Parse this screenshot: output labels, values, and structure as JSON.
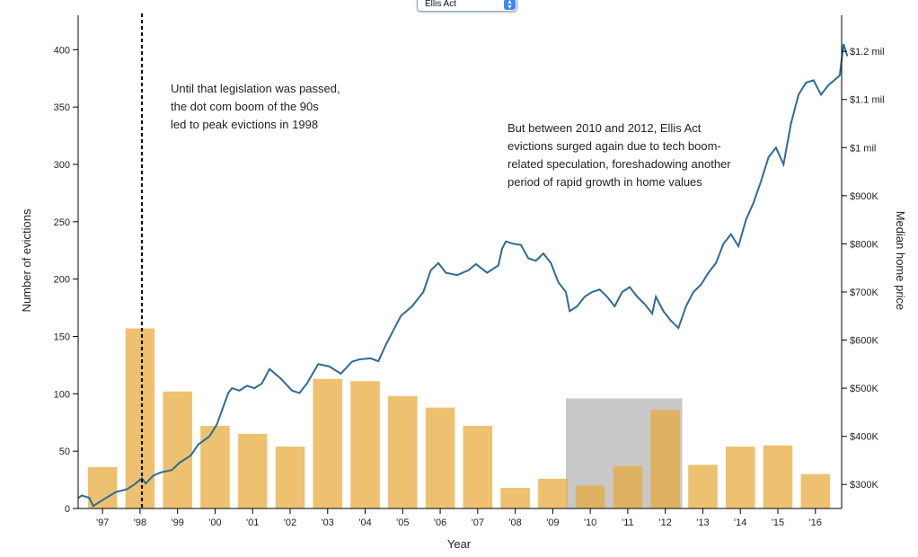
{
  "dropdown": {
    "selected": "Ellis Act"
  },
  "annotations": {
    "left": [
      "Until that legislation was passed,",
      "the dot com boom of the 90s",
      "led to peak evictions in 1998"
    ],
    "right": [
      "But between 2010 and 2012, Ellis Act",
      "evictions surged again due to tech boom-",
      "related speculation, foreshadowing another",
      "period of rapid growth in home values"
    ]
  },
  "colors": {
    "bar": "#e8a93a",
    "line": "#2c6b9a",
    "highlight": "#c8c8c8",
    "marker": "#111111"
  },
  "chart_data": {
    "type": "bar",
    "title": "",
    "xlabel": "Year",
    "ylabel_left": "Number of evictions",
    "ylabel_right": "Median home price",
    "ylim_left": [
      0,
      430
    ],
    "ylim_right": [
      250000,
      1275000
    ],
    "x_tick_labels": [
      "'97",
      "'98",
      "'99",
      "'00",
      "'01",
      "'02",
      "'03",
      "'04",
      "'05",
      "'06",
      "'07",
      "'08",
      "'09",
      "'10",
      "'11",
      "'12",
      "'13",
      "'14",
      "'15",
      "'16"
    ],
    "left_ticks": [
      0,
      50,
      100,
      150,
      200,
      250,
      300,
      350,
      400
    ],
    "right_ticks": [
      {
        "value": 300000,
        "label": "$300K"
      },
      {
        "value": 400000,
        "label": "$400K"
      },
      {
        "value": 500000,
        "label": "$500K"
      },
      {
        "value": 600000,
        "label": "$600K"
      },
      {
        "value": 700000,
        "label": "$700K"
      },
      {
        "value": 800000,
        "label": "$800K"
      },
      {
        "value": 900000,
        "label": "$900K"
      },
      {
        "value": 1000000,
        "label": "$1 mil"
      },
      {
        "value": 1100000,
        "label": "$1.1 mil"
      },
      {
        "value": 1200000,
        "label": "$1.2 mil"
      }
    ],
    "bars": {
      "name": "Ellis Act evictions",
      "categories": [
        "1997",
        "1998",
        "1999",
        "2000",
        "2001",
        "2002",
        "2003",
        "2004",
        "2005",
        "2006",
        "2007",
        "2008",
        "2009",
        "2010",
        "2011",
        "2012",
        "2013",
        "2014",
        "2015",
        "2016"
      ],
      "values": [
        36,
        157,
        102,
        72,
        65,
        54,
        113,
        111,
        98,
        88,
        72,
        18,
        26,
        20,
        37,
        86,
        38,
        54,
        55,
        30
      ]
    },
    "line": {
      "name": "Median home price",
      "points": [
        [
          1996.5,
          272000
        ],
        [
          1996.6,
          277000
        ],
        [
          1996.8,
          272000
        ],
        [
          1996.9,
          255000
        ],
        [
          1997.2,
          270000
        ],
        [
          1997.5,
          284000
        ],
        [
          1997.8,
          290000
        ],
        [
          1998.0,
          300000
        ],
        [
          1998.2,
          313000
        ],
        [
          1998.3,
          302000
        ],
        [
          1998.5,
          318000
        ],
        [
          1998.7,
          325000
        ],
        [
          1999.0,
          330000
        ],
        [
          1999.2,
          345000
        ],
        [
          1999.5,
          360000
        ],
        [
          1999.7,
          383000
        ],
        [
          2000.0,
          400000
        ],
        [
          2000.2,
          425000
        ],
        [
          2000.5,
          490000
        ],
        [
          2000.6,
          500000
        ],
        [
          2000.8,
          495000
        ],
        [
          2001.0,
          505000
        ],
        [
          2001.2,
          500000
        ],
        [
          2001.4,
          510000
        ],
        [
          2001.6,
          540000
        ],
        [
          2001.9,
          520000
        ],
        [
          2002.2,
          495000
        ],
        [
          2002.4,
          490000
        ],
        [
          2002.6,
          510000
        ],
        [
          2002.9,
          550000
        ],
        [
          2003.2,
          545000
        ],
        [
          2003.5,
          530000
        ],
        [
          2003.8,
          555000
        ],
        [
          2004.0,
          560000
        ],
        [
          2004.3,
          562000
        ],
        [
          2004.5,
          556000
        ],
        [
          2004.7,
          590000
        ],
        [
          2004.9,
          620000
        ],
        [
          2005.1,
          650000
        ],
        [
          2005.4,
          670000
        ],
        [
          2005.7,
          700000
        ],
        [
          2005.9,
          745000
        ],
        [
          2006.1,
          760000
        ],
        [
          2006.3,
          740000
        ],
        [
          2006.6,
          735000
        ],
        [
          2006.9,
          745000
        ],
        [
          2007.1,
          758000
        ],
        [
          2007.4,
          740000
        ],
        [
          2007.7,
          755000
        ],
        [
          2007.8,
          790000
        ],
        [
          2007.9,
          805000
        ],
        [
          2008.1,
          800000
        ],
        [
          2008.3,
          798000
        ],
        [
          2008.5,
          770000
        ],
        [
          2008.7,
          765000
        ],
        [
          2008.9,
          780000
        ],
        [
          2009.1,
          760000
        ],
        [
          2009.3,
          720000
        ],
        [
          2009.5,
          700000
        ],
        [
          2009.6,
          660000
        ],
        [
          2009.8,
          670000
        ],
        [
          2010.0,
          690000
        ],
        [
          2010.2,
          700000
        ],
        [
          2010.4,
          705000
        ],
        [
          2010.6,
          690000
        ],
        [
          2010.8,
          670000
        ],
        [
          2011.0,
          700000
        ],
        [
          2011.2,
          710000
        ],
        [
          2011.4,
          690000
        ],
        [
          2011.6,
          675000
        ],
        [
          2011.8,
          655000
        ],
        [
          2011.9,
          690000
        ],
        [
          2012.1,
          660000
        ],
        [
          2012.3,
          640000
        ],
        [
          2012.5,
          625000
        ],
        [
          2012.7,
          670000
        ],
        [
          2012.9,
          700000
        ],
        [
          2013.1,
          715000
        ],
        [
          2013.3,
          740000
        ],
        [
          2013.5,
          760000
        ],
        [
          2013.7,
          800000
        ],
        [
          2013.9,
          820000
        ],
        [
          2014.1,
          795000
        ],
        [
          2014.3,
          850000
        ],
        [
          2014.5,
          885000
        ],
        [
          2014.7,
          930000
        ],
        [
          2014.9,
          980000
        ],
        [
          2015.1,
          1000000
        ],
        [
          2015.3,
          965000
        ],
        [
          2015.5,
          1050000
        ],
        [
          2015.7,
          1110000
        ],
        [
          2015.9,
          1135000
        ],
        [
          2016.1,
          1140000
        ],
        [
          2016.3,
          1110000
        ],
        [
          2016.5,
          1130000
        ],
        [
          2016.8,
          1150000
        ],
        [
          2016.9,
          1215000
        ],
        [
          2017.0,
          1190000
        ]
      ]
    },
    "marker_year": 1998.2,
    "highlight_range": [
      2009.5,
      2012.6
    ],
    "highlight_top": 96,
    "grid": false,
    "legend": "none"
  }
}
